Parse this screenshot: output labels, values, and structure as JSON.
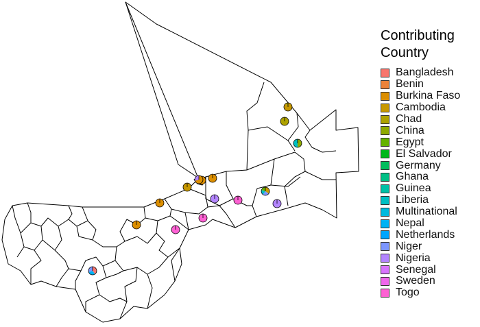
{
  "legend": {
    "title_line1": "Contributing",
    "title_line2": "Country",
    "items": [
      {
        "label": "Bangladesh",
        "color": "#F8766D"
      },
      {
        "label": "Benin",
        "color": "#EC8239"
      },
      {
        "label": "Burkina Faso",
        "color": "#DB8E00"
      },
      {
        "label": "Cambodia",
        "color": "#C79800"
      },
      {
        "label": "Chad",
        "color": "#AEA200"
      },
      {
        "label": "China",
        "color": "#8FAA00"
      },
      {
        "label": "Egypt",
        "color": "#64B200"
      },
      {
        "label": "El Salvador",
        "color": "#00B81B"
      },
      {
        "label": "Germany",
        "color": "#00BD5C"
      },
      {
        "label": "Ghana",
        "color": "#00C085"
      },
      {
        "label": "Guinea",
        "color": "#00C1A7"
      },
      {
        "label": "Liberia",
        "color": "#00BFC4"
      },
      {
        "label": "Multinational",
        "color": "#00BADE"
      },
      {
        "label": "Nepal",
        "color": "#00B2F3"
      },
      {
        "label": "Netherlands",
        "color": "#00A6FF"
      },
      {
        "label": "Niger",
        "color": "#7C96FF"
      },
      {
        "label": "Nigeria",
        "color": "#B385FF"
      },
      {
        "label": "Senegal",
        "color": "#D874FD"
      },
      {
        "label": "Sweden",
        "color": "#EF67EB"
      },
      {
        "label": "Togo",
        "color": "#FD61D3"
      }
    ]
  },
  "pies": [
    {
      "slices": [
        {
          "country": "Cambodia",
          "share": 0.9
        },
        {
          "country": "Chad",
          "share": 0.1
        }
      ]
    },
    {
      "slices": [
        {
          "country": "Chad",
          "share": 1
        }
      ]
    },
    {
      "slices": [
        {
          "country": "China",
          "share": 0.5
        },
        {
          "country": "Liberia",
          "share": 0.5
        }
      ]
    },
    {
      "slices": [
        {
          "country": "Cambodia",
          "share": 0.35
        },
        {
          "country": "Niger",
          "share": 0.25
        },
        {
          "country": "Liberia",
          "share": 0.2
        },
        {
          "country": "Egypt",
          "share": 0.2
        }
      ]
    },
    {
      "slices": [
        {
          "country": "Nigeria",
          "share": 1
        }
      ]
    },
    {
      "slices": [
        {
          "country": "Togo",
          "share": 1
        }
      ]
    },
    {
      "slices": [
        {
          "country": "Nigeria",
          "share": 1
        }
      ]
    },
    {
      "slices": [
        {
          "country": "Burkina Faso",
          "share": 1
        }
      ]
    },
    {
      "slices": [
        {
          "country": "Burkina Faso",
          "share": 1
        }
      ]
    },
    {
      "slices": [
        {
          "country": "Burkina Faso",
          "share": 0.7
        },
        {
          "country": "Nigeria",
          "share": 0.3
        }
      ]
    },
    {
      "slices": [
        {
          "country": "Cambodia",
          "share": 1
        }
      ]
    },
    {
      "slices": [
        {
          "country": "Burkina Faso",
          "share": 1
        }
      ]
    },
    {
      "slices": [
        {
          "country": "Burkina Faso",
          "share": 1
        }
      ]
    },
    {
      "slices": [
        {
          "country": "Togo",
          "share": 1
        }
      ]
    },
    {
      "slices": [
        {
          "country": "Togo",
          "share": 1
        }
      ]
    },
    {
      "slices": [
        {
          "country": "Bangladesh",
          "share": 0.4
        },
        {
          "country": "Nepal",
          "share": 0.3
        },
        {
          "country": "Niger",
          "share": 0.3
        }
      ]
    }
  ]
}
